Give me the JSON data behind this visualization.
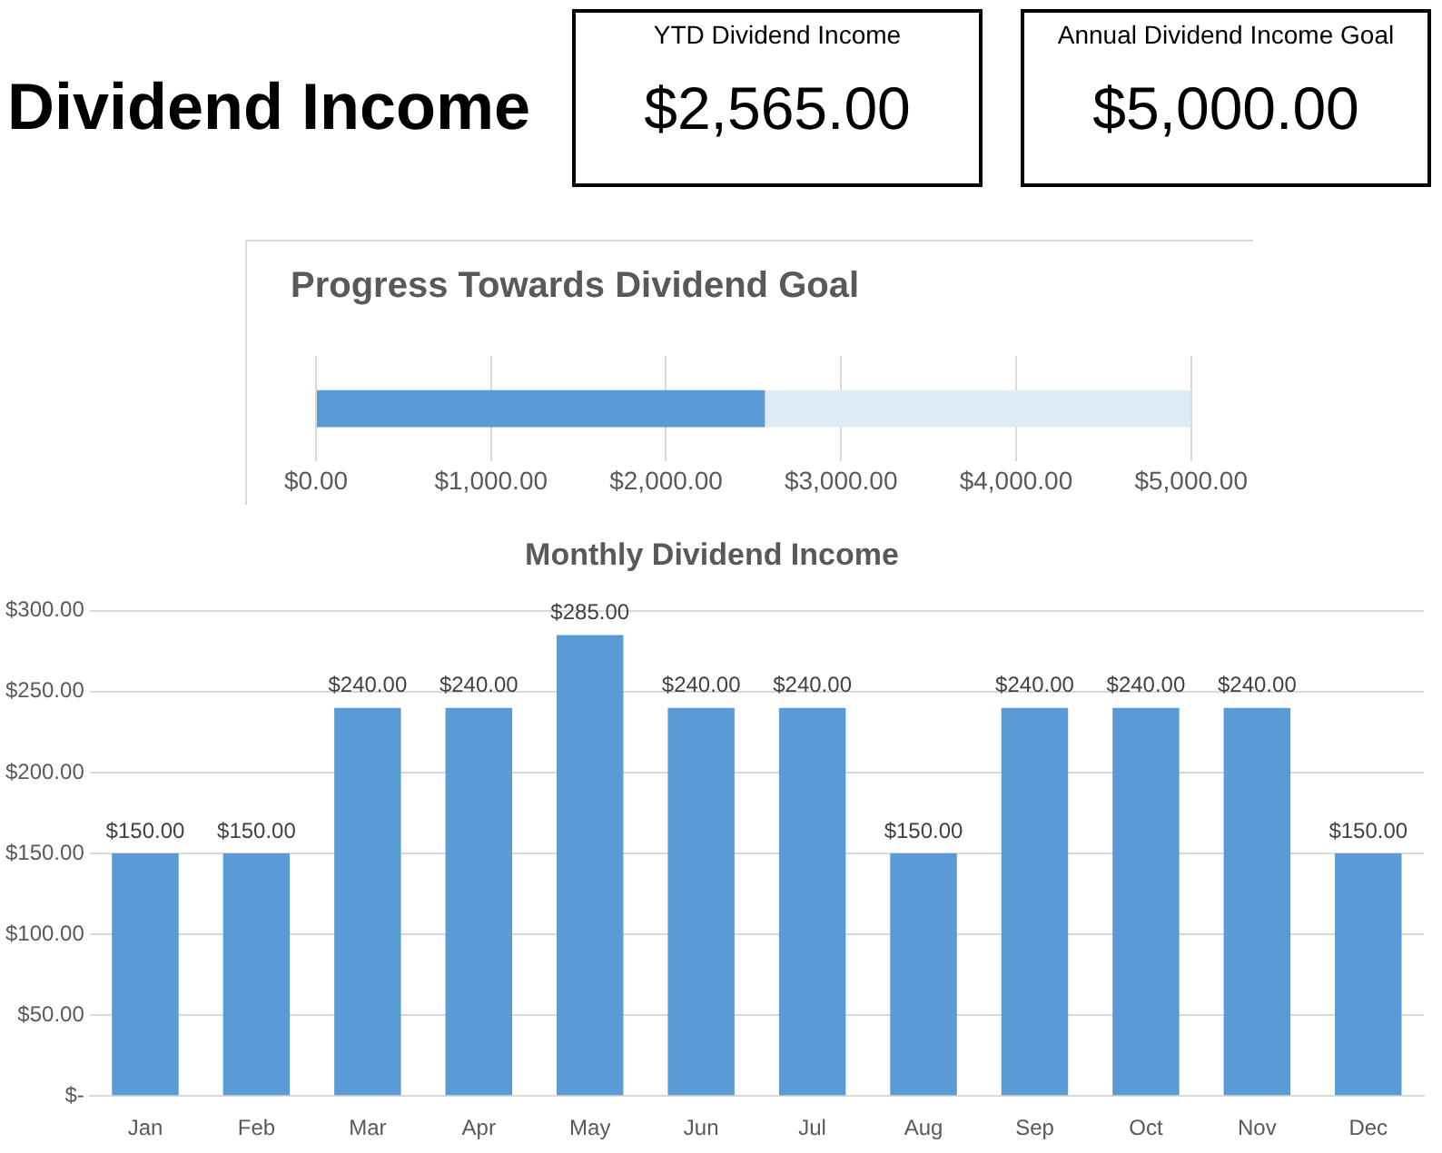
{
  "chart_data": [
    {
      "type": "other",
      "title": "Dividend Income",
      "categories": [
        "YTD Dividend Income",
        "Annual Dividend Income Goal"
      ],
      "value_labels": [
        "$2,565.00",
        "$5,000.00"
      ]
    },
    {
      "type": "bar",
      "title": "Progress Towards Dividend Goal",
      "orientation": "horizontal",
      "stacked": true,
      "categories": [
        null
      ],
      "series": [
        {
          "color": "#5b9bd5",
          "values": [
            2565
          ]
        },
        {
          "color": "#deebf7",
          "values": [
            2435
          ]
        }
      ],
      "xlim": [
        0,
        5000
      ],
      "xticks": [
        {
          "value": 0,
          "label": "$0.00"
        },
        {
          "value": 1000,
          "label": "$1,000.00"
        },
        {
          "value": 2000,
          "label": "$2,000.00"
        },
        {
          "value": 3000,
          "label": "$3,000.00"
        },
        {
          "value": 4000,
          "label": "$4,000.00"
        },
        {
          "value": 5000,
          "label": "$5,000.00"
        }
      ],
      "grid": "x",
      "legend": false
    },
    {
      "type": "bar",
      "title": "Monthly Dividend Income",
      "categories": [
        "Jan",
        "Feb",
        "Mar",
        "Apr",
        "May",
        "Jun",
        "Jul",
        "Aug",
        "Sep",
        "Oct",
        "Nov",
        "Dec"
      ],
      "values": [
        150,
        150,
        240,
        240,
        285,
        240,
        240,
        150,
        240,
        240,
        240,
        150
      ],
      "color": "#5b9bd5",
      "value_labels": [
        "$150.00",
        "$150.00",
        "$240.00",
        "$240.00",
        "$285.00",
        "$240.00",
        "$240.00",
        "$150.00",
        "$240.00",
        "$240.00",
        "$240.00",
        "$150.00"
      ],
      "ylim": [
        0,
        300
      ],
      "yticks": [
        {
          "value": 0,
          "label": "$-"
        },
        {
          "value": 50,
          "label": "$50.00"
        },
        {
          "value": 100,
          "label": "$100.00"
        },
        {
          "value": 150,
          "label": "$150.00"
        },
        {
          "value": 200,
          "label": "$200.00"
        },
        {
          "value": 250,
          "label": "$250.00"
        },
        {
          "value": 300,
          "label": "$300.00"
        }
      ],
      "grid": "y",
      "legend": false
    }
  ]
}
